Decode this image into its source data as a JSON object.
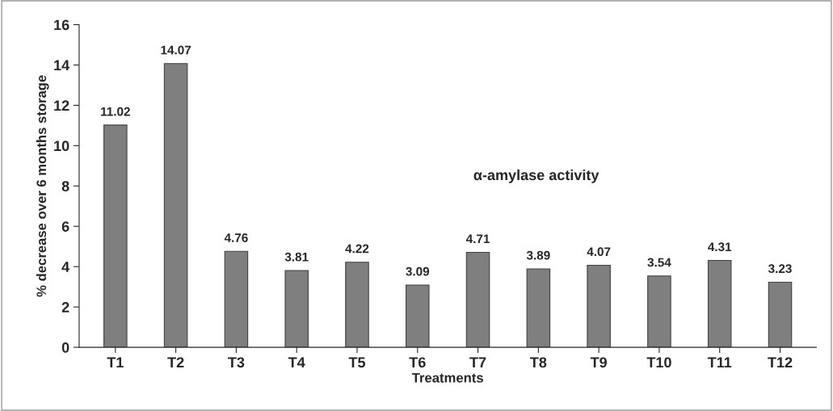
{
  "chart_data": {
    "type": "bar",
    "xlabel": "Treatments",
    "ylabel": "% decrease over 6 months storage",
    "categories": [
      "T1",
      "T2",
      "T3",
      "T4",
      "T5",
      "T6",
      "T7",
      "T8",
      "T9",
      "T10",
      "T11",
      "T12"
    ],
    "values": [
      11.02,
      14.07,
      4.76,
      3.81,
      4.22,
      3.09,
      4.71,
      3.89,
      4.07,
      3.54,
      4.31,
      3.23
    ],
    "color": "#7f7f7f",
    "ylim": [
      0,
      16
    ],
    "yticks": [
      0,
      2,
      4,
      6,
      8,
      10,
      12,
      14,
      16
    ],
    "data_labels": true,
    "grid": false,
    "legend": false,
    "annotations": [
      "α-amylase activity"
    ]
  }
}
